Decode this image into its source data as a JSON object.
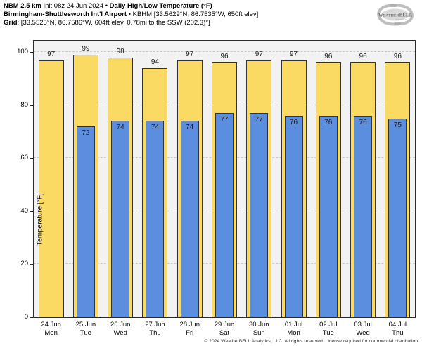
{
  "header": {
    "lines": [
      {
        "segments": [
          {
            "text": "NBM 2.5 km",
            "bold": true
          },
          {
            "text": " Init 08z 24 Jun 2024 • ",
            "bold": false
          },
          {
            "text": "Daily High/Low Temperature (°F)",
            "bold": true
          }
        ]
      },
      {
        "segments": [
          {
            "text": "Birmingham-Shuttlesworth Int'l Airport",
            "bold": true
          },
          {
            "text": " • KBHM [33.5629°N, 86.7535°W, 650ft elev]",
            "bold": false
          }
        ]
      },
      {
        "segments": [
          {
            "text": "Grid",
            "bold": true
          },
          {
            "text": ": [33.5525°N, 86.7586°W, 604ft elev, 0.78mi to the SSW (202.3)°]",
            "bold": false
          }
        ]
      }
    ]
  },
  "logo": {
    "name": "WeatherBELL",
    "color": "#9a9a9a"
  },
  "chart_data": {
    "type": "bar",
    "title": "NBM 2.5 km Daily High/Low Temperature (°F) — KBHM Birmingham-Shuttlesworth Int'l Airport",
    "categories": [
      {
        "date": "24 Jun",
        "day": "Mon"
      },
      {
        "date": "25 Jun",
        "day": "Tue"
      },
      {
        "date": "26 Jun",
        "day": "Wed"
      },
      {
        "date": "27 Jun",
        "day": "Thu"
      },
      {
        "date": "28 Jun",
        "day": "Fri"
      },
      {
        "date": "29 Jun",
        "day": "Sat"
      },
      {
        "date": "30 Jun",
        "day": "Sun"
      },
      {
        "date": "01 Jul",
        "day": "Mon"
      },
      {
        "date": "02 Jul",
        "day": "Tue"
      },
      {
        "date": "03 Jul",
        "day": "Wed"
      },
      {
        "date": "04 Jul",
        "day": "Thu"
      }
    ],
    "series": [
      {
        "name": "Daily High",
        "color": "#fbda63",
        "border": "#333333",
        "values": [
          97,
          99,
          98,
          94,
          97,
          96,
          97,
          97,
          96,
          96,
          96
        ]
      },
      {
        "name": "Daily Low",
        "color": "#5c8ee0",
        "border": "#333333",
        "values": [
          null,
          72,
          74,
          74,
          74,
          77,
          77,
          76,
          76,
          76,
          75
        ]
      }
    ],
    "xlabel": "",
    "ylabel": "Temperature [°F]",
    "yticks": [
      0,
      20,
      40,
      60,
      80,
      100
    ],
    "ylim": [
      0,
      104.3
    ],
    "grid": "horizontal dashed at yticks",
    "legend": "none",
    "plot_background": "#f2f2f2",
    "gridline_color": "#c9c9c9"
  },
  "footer": {
    "copyright": "© 2024 WeatherBELL Analytics, LLC. All rights reserved. License required for commercial distribution."
  }
}
